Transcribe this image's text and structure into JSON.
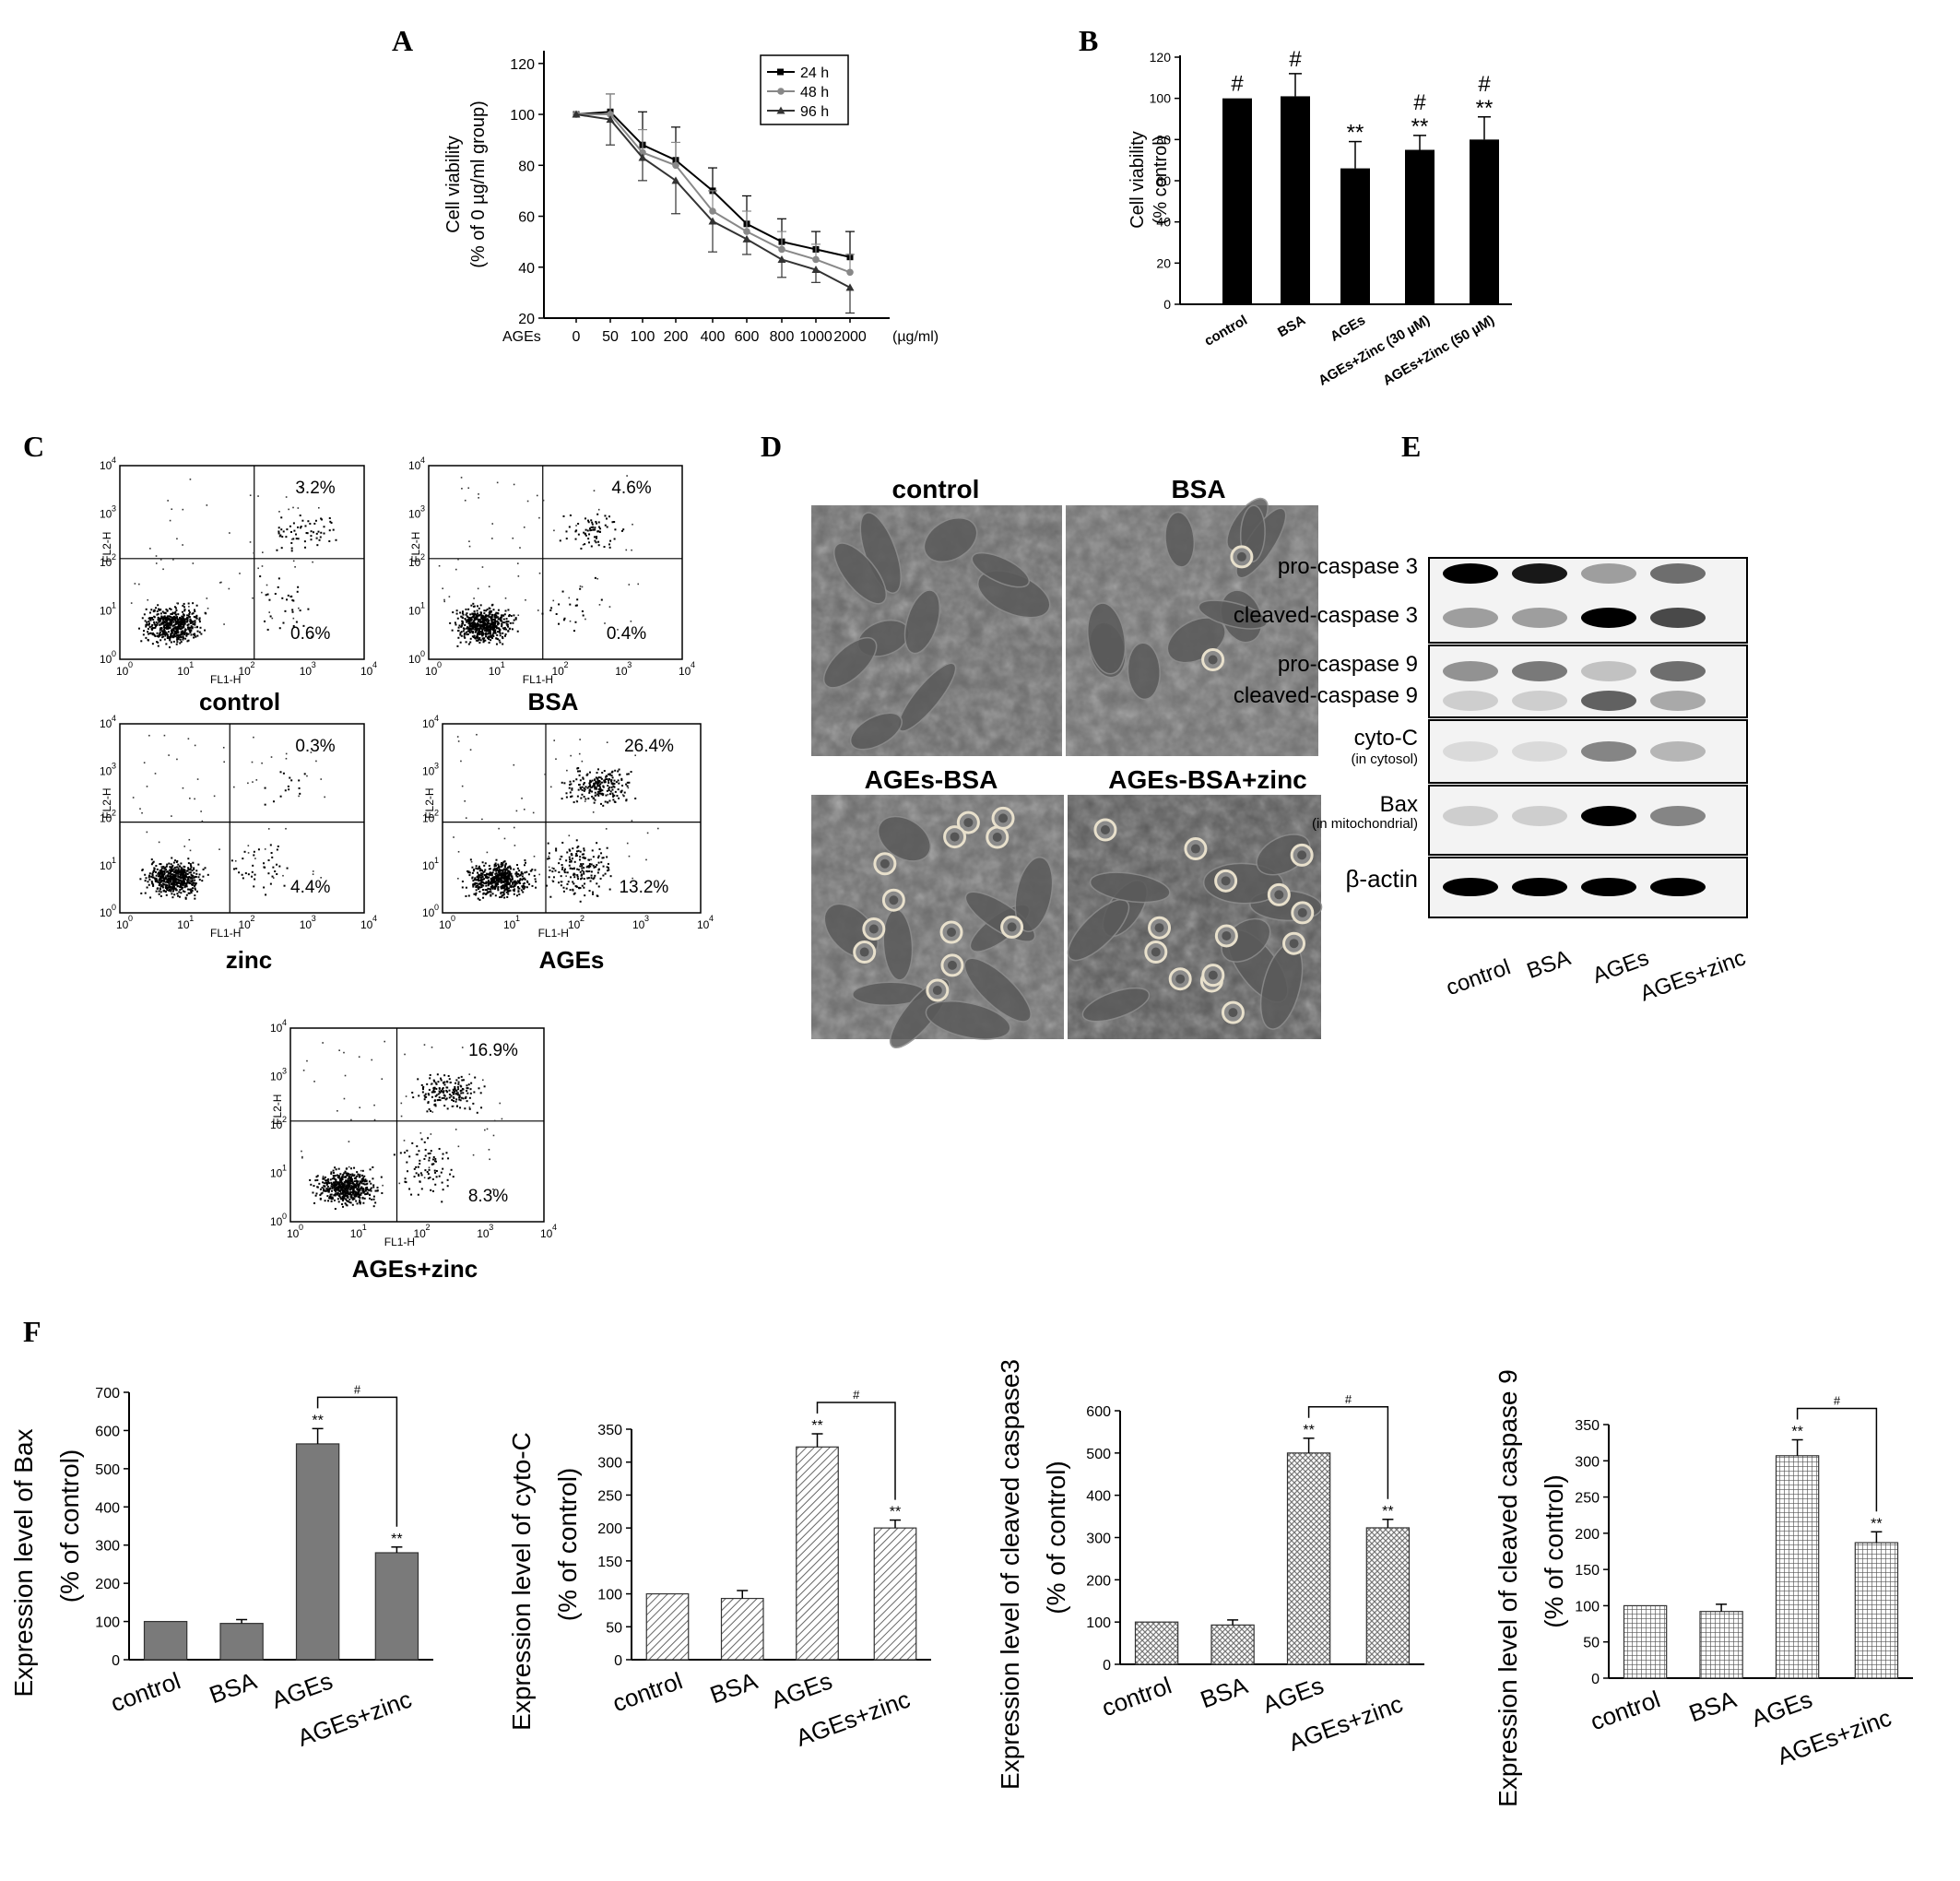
{
  "colors": {
    "ink": "#000000",
    "grid": "#000000",
    "panel_bg": "#ffffff",
    "micro_bg": "#6e6e6e",
    "bar_gray": "#7a7a7a",
    "line_24": "#000000",
    "line_48": "#888888",
    "line_96": "#333333"
  },
  "panel_labels": {
    "a": "A",
    "b": "B",
    "c": "C",
    "d": "D",
    "e": "E",
    "f": "F"
  },
  "panelA": {
    "type": "line",
    "ylabel_line1": "Cell viability",
    "ylabel_line2": "(% of 0 µg/ml group)",
    "x_prefix": "AGEs",
    "x_unit": "(µg/ml)",
    "categories": [
      "0",
      "50",
      "100",
      "200",
      "400",
      "600",
      "800",
      "1000",
      "2000"
    ],
    "yticks": [
      "20",
      "40",
      "60",
      "80",
      "100",
      "120"
    ],
    "ylim": [
      20,
      125
    ],
    "legend": [
      "24 h",
      "48 h",
      "96 h"
    ],
    "series": [
      {
        "name": "24 h",
        "values": [
          100,
          101,
          88,
          82,
          70,
          57,
          50,
          47,
          44
        ],
        "err": [
          0,
          7,
          13,
          13,
          9,
          11,
          9,
          7,
          10
        ]
      },
      {
        "name": "48 h",
        "values": [
          100,
          100,
          85,
          80,
          62,
          54,
          47,
          43,
          38
        ],
        "err": [
          0,
          8,
          9,
          9,
          8,
          8,
          7,
          6,
          7
        ]
      },
      {
        "name": "96 h",
        "values": [
          100,
          98,
          83,
          74,
          58,
          51,
          43,
          39,
          32
        ],
        "err": [
          0,
          10,
          9,
          13,
          12,
          6,
          7,
          5,
          10
        ]
      }
    ]
  },
  "panelB": {
    "type": "bar",
    "ylabel_line1": "Cell viability",
    "ylabel_line2": "(% control)",
    "categories": [
      "control",
      "BSA",
      "AGEs",
      "AGEs+Zinc (30 µM)",
      "AGEs+Zinc (50 µM)"
    ],
    "values": [
      100,
      101,
      66,
      75,
      80
    ],
    "err": [
      0,
      11,
      13,
      7,
      11
    ],
    "marks_top": [
      "#",
      "#",
      "",
      "#",
      "#"
    ],
    "marks_bottom": [
      "",
      "",
      "**",
      "**",
      "**"
    ],
    "yticks": [
      "0",
      "20",
      "40",
      "60",
      "80",
      "100",
      "120"
    ],
    "ylim": [
      0,
      120
    ]
  },
  "panelC": {
    "xlabel": "FL1-H",
    "ylabel": "FL2-H",
    "plots": [
      {
        "label": "control",
        "ur": "3.2%",
        "lr": "0.6%"
      },
      {
        "label": "BSA",
        "ur": "4.6%",
        "lr": "0.4%"
      },
      {
        "label": "zinc",
        "ur": "0.3%",
        "lr": "4.4%"
      },
      {
        "label": "AGEs",
        "ur": "26.4%",
        "lr": "13.2%"
      },
      {
        "label": "AGEs+zinc",
        "ur": "16.9%",
        "lr": "8.3%"
      }
    ]
  },
  "panelD": {
    "labels": [
      "control",
      "BSA",
      "AGEs-BSA",
      "AGEs-BSA+zinc"
    ]
  },
  "panelE": {
    "rows": [
      {
        "label": "pro-caspase 3",
        "sub": ""
      },
      {
        "label": "cleaved-caspase 3",
        "sub": ""
      },
      {
        "label": "pro-caspase 9",
        "sub": ""
      },
      {
        "label": "cleaved-caspase 9",
        "sub": ""
      },
      {
        "label": "cyto-C",
        "sub": "(in cytosol)"
      },
      {
        "label": "Bax",
        "sub": "(in mitochondrial)"
      },
      {
        "label": "β-actin",
        "sub": ""
      }
    ],
    "lanes": [
      "control",
      "BSA",
      "AGEs",
      "AGEs+zinc"
    ]
  },
  "panelF": {
    "type": "bar",
    "categories": [
      "control",
      "BSA",
      "AGEs",
      "AGEs+zinc"
    ],
    "charts": [
      {
        "ylabel_line1": "Expression level of Bax",
        "ylabel_line2": "(% of control)",
        "values": [
          100,
          95,
          565,
          280
        ],
        "err": [
          0,
          10,
          40,
          15
        ],
        "ymax": 700,
        "yticks": [
          "0",
          "100",
          "200",
          "300",
          "400",
          "500",
          "600",
          "700"
        ],
        "star": "**",
        "hash": "#"
      },
      {
        "ylabel_line1": "Expression level of cyto-C",
        "ylabel_line2": "(% of control)",
        "values": [
          100,
          93,
          323,
          200
        ],
        "err": [
          0,
          12,
          20,
          12
        ],
        "ymax": 350,
        "yticks": [
          "0",
          "50",
          "100",
          "150",
          "200",
          "250",
          "300",
          "350"
        ],
        "star": "**",
        "hash": "#"
      },
      {
        "ylabel_line1": "Expression level of cleaved caspase3",
        "ylabel_line2": "(% of control)",
        "values": [
          100,
          93,
          500,
          323
        ],
        "err": [
          0,
          12,
          35,
          20
        ],
        "ymax": 600,
        "yticks": [
          "0",
          "100",
          "200",
          "300",
          "400",
          "500",
          "600"
        ],
        "star": "**",
        "hash": "#"
      },
      {
        "ylabel_line1": "Expression level of cleaved caspase 9",
        "ylabel_line2": "(% of control)",
        "values": [
          100,
          92,
          307,
          187
        ],
        "err": [
          0,
          10,
          22,
          15
        ],
        "ymax": 350,
        "yticks": [
          "0",
          "50",
          "100",
          "150",
          "200",
          "250",
          "300",
          "350"
        ],
        "star": "**",
        "hash": "#"
      }
    ]
  }
}
